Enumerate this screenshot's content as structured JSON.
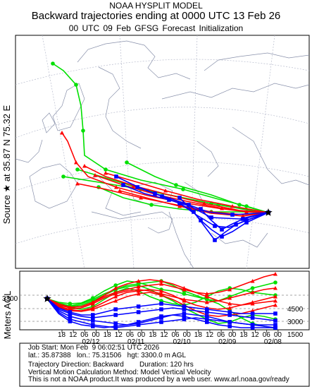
{
  "header": {
    "line1": "NOAA HYSPLIT MODEL",
    "line2": "Backward trajectories ending at 0000 UTC 13 Feb 26",
    "line3": "00 UTC 09 Feb    GFSG  Forecast Initialization"
  },
  "side_label": "Source ★ at   35.87 N   75.32 E",
  "height_axis": {
    "label": "Meters AGL",
    "start_height": "3300",
    "ticks": [
      "4500",
      "3000",
      "1500"
    ]
  },
  "time_axis": {
    "hour_labels": [
      "18",
      "12",
      "06",
      "00",
      "18",
      "12",
      "06",
      "00",
      "18",
      "12",
      "06",
      "00",
      "18",
      "12",
      "06",
      "00",
      "18",
      "12",
      "06",
      "00"
    ],
    "date_labels": [
      "02/12",
      "02/11",
      "02/10",
      "02/09",
      "02/08"
    ]
  },
  "info": {
    "job_start": "Job Start: Mon Feb  9 06:02:51 UTC 2026",
    "location": "lat.: 35.87388   lon.: 75.31506   hgt: 3300.0 m AGL",
    "direction": "Trajectory Direction: Backward        Duration: 120 hrs",
    "vertical": "Vertical Motion Calculation Method: Model Vertical Velocity",
    "disclaimer": "This is not a NOAA product.It was produced by a web user. www.arl.noaa.gov/ready"
  },
  "colors": {
    "red": "#ff0000",
    "blue": "#0000ff",
    "green": "#00e000",
    "map": "#9aa0b8"
  },
  "source": {
    "lat": 35.87,
    "lon": 75.32
  }
}
